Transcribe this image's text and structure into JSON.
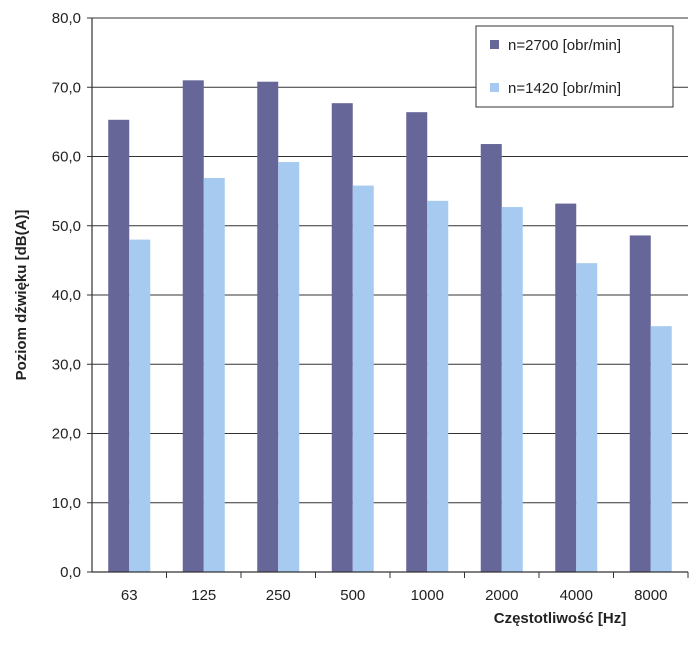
{
  "chart_data": {
    "type": "bar",
    "title": "",
    "xlabel": "Częstotliwość [Hz]",
    "ylabel": "Poziom dźwięku [dB(A)]",
    "categories": [
      "63",
      "125",
      "250",
      "500",
      "1000",
      "2000",
      "4000",
      "8000"
    ],
    "series": [
      {
        "name": "n=2700 [obr/min]",
        "color": "#666699",
        "values": [
          65.3,
          71.0,
          70.8,
          67.7,
          66.4,
          61.8,
          53.2,
          48.6
        ]
      },
      {
        "name": "n=1420 [obr/min]",
        "color": "#a6caf0",
        "values": [
          48.0,
          56.9,
          59.2,
          55.8,
          53.6,
          52.7,
          44.6,
          35.5
        ]
      }
    ],
    "ylim": [
      0,
      80
    ],
    "yticks": [
      "0,0",
      "10,0",
      "20,0",
      "30,0",
      "40,0",
      "50,0",
      "60,0",
      "70,0",
      "80,0"
    ],
    "grid": true,
    "legend_position": "top-right"
  }
}
